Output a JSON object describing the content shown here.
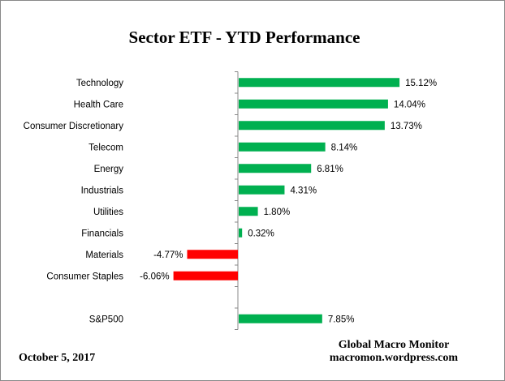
{
  "chart_data": {
    "type": "bar",
    "orientation": "horizontal",
    "title": "Sector ETF - YTD  Performance",
    "categories": [
      "Technology",
      "Health Care",
      "Consumer Discretionary",
      "Telecom",
      "Energy",
      "Industrials",
      "Utilities",
      "Financials",
      "Materials",
      "Consumer Staples",
      "",
      "S&P500"
    ],
    "values": [
      15.12,
      14.04,
      13.73,
      8.14,
      6.81,
      4.31,
      1.8,
      0.32,
      -4.77,
      -6.06,
      null,
      7.85
    ],
    "data_labels": [
      "15.12%",
      "14.04%",
      "13.73%",
      "8.14%",
      "6.81%",
      "4.31%",
      "1.80%",
      "0.32%",
      "-4.77%",
      "-6.06%",
      "",
      "7.85%"
    ],
    "unit": "%",
    "colors": {
      "positive": "#00b050",
      "negative": "#ff0000"
    },
    "xlim": [
      -6.8,
      25
    ],
    "grid": false,
    "legend": "none"
  },
  "footer": {
    "date": "October 5,  2017",
    "source_line1": "Global Macro Monitor",
    "source_line2": "macromon.wordpress.com"
  }
}
